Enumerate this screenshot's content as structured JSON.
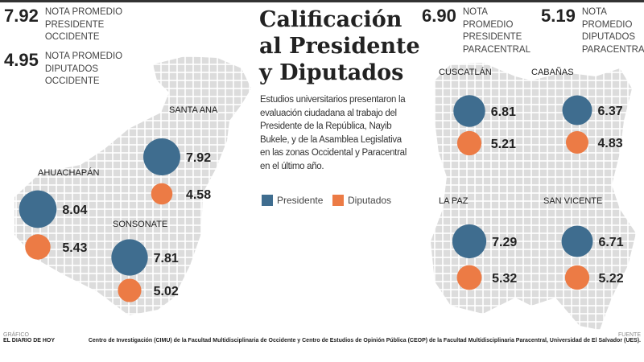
{
  "title": [
    "Calificación",
    "al Presidente",
    "y Diputados"
  ],
  "description": "Estudios universitarios presentaron la evaluación ciudadana al trabajo del Presidente de la República, Nayib Bukele, y de la Asamblea Legislativa en las zonas Occidental y Paracentral en el último año.",
  "legend": {
    "presidente": "Presidente",
    "diputados": "Diputados"
  },
  "colors": {
    "presidente": "#3f6d8f",
    "diputados": "#ec7b45",
    "map": "#dcdcdc"
  },
  "stats": [
    {
      "value": "7.92",
      "label": "NOTA PROMEDIO PRESIDENTE OCCIDENTE"
    },
    {
      "value": "4.95",
      "label": "NOTA PROMEDIO DIPUTADOS OCCIDENTE"
    },
    {
      "value": "6.90",
      "label": "NOTA PROMEDIO PRESIDENTE PARACENTRAL"
    },
    {
      "value": "5.19",
      "label": "NOTA PROMEDIO DIPUTADOS PARACENTRAL"
    }
  ],
  "chart_data": {
    "type": "bubble-map",
    "series": [
      "Presidente",
      "Diputados"
    ],
    "departments": [
      {
        "name": "SANTA ANA",
        "zone": "Occidente",
        "presidente": 7.92,
        "diputados": 4.58
      },
      {
        "name": "AHUACHAPÁN",
        "zone": "Occidente",
        "presidente": 8.04,
        "diputados": 5.43
      },
      {
        "name": "SONSONATE",
        "zone": "Occidente",
        "presidente": 7.81,
        "diputados": 5.02
      },
      {
        "name": "CUSCATLÁN",
        "zone": "Paracentral",
        "presidente": 6.81,
        "diputados": 5.21
      },
      {
        "name": "CABAÑAS",
        "zone": "Paracentral",
        "presidente": 6.37,
        "diputados": 4.83
      },
      {
        "name": "LA PAZ",
        "zone": "Paracentral",
        "presidente": 7.29,
        "diputados": 5.32
      },
      {
        "name": "SAN VICENTE",
        "zone": "Paracentral",
        "presidente": 6.71,
        "diputados": 5.22
      }
    ]
  },
  "footer": {
    "credit_label": "GRÁFICO",
    "credit": "EL DIARIO DE HOY",
    "source_label": "FUENTE",
    "source": "Centro de Investigación (CIMU) de la Facultad Multidisciplinaria de Occidente y Centro de Estudios de Opinión Pública (CEOP) de la Facultad Multidisciplinaria Paracentral, Universidad de El Salvador (UES)."
  }
}
